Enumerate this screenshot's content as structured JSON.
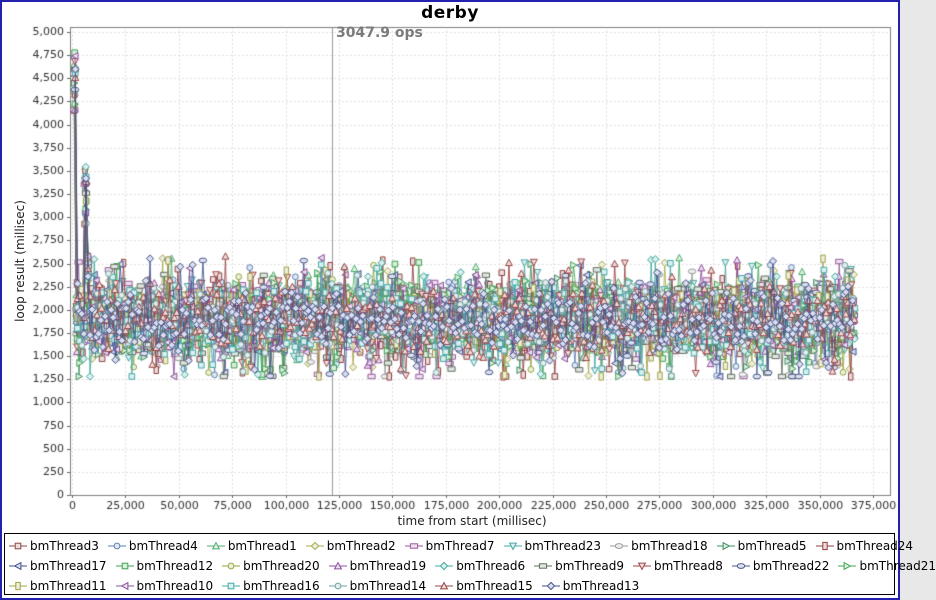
{
  "window": {
    "border_color": "#2121ad",
    "background": "#ffffff"
  },
  "chart_data": {
    "type": "scatter-line",
    "title": "derby",
    "xlabel": "time from start (millisec)",
    "ylabel": "loop result (millisec)",
    "xlim": [
      0,
      375000
    ],
    "ylim": [
      0,
      5000
    ],
    "x_tick_step": 25000,
    "y_tick_step": 250,
    "grid": true,
    "legend_position": "bottom",
    "annotation": {
      "text": "3047.9 ops",
      "x_value": 121500,
      "color": "#7b7b7b"
    },
    "sampling": {
      "t_start": 1000,
      "t_end": 366500,
      "t_step": 1020
    },
    "pattern": {
      "startup_spike": {
        "index": 0,
        "min": 4150,
        "max": 4800
      },
      "secondary_spike": {
        "index": 5,
        "min": 2850,
        "max": 3550
      },
      "post_spike": {
        "index": 6,
        "min": 2300,
        "max": 2600
      },
      "steady_band": {
        "mean": 1900,
        "stddev": 165,
        "min": 1280,
        "max": 2660
      }
    },
    "series": [
      {
        "name": "bmThread3",
        "color": "#8e4545",
        "shape": "square"
      },
      {
        "name": "bmThread4",
        "color": "#5a7fb5",
        "shape": "circle"
      },
      {
        "name": "bmThread1",
        "color": "#4fae6e",
        "shape": "triangle-up"
      },
      {
        "name": "bmThread2",
        "color": "#a8a84f",
        "shape": "diamond"
      },
      {
        "name": "bmThread7",
        "color": "#9a5a9a",
        "shape": "rect-h"
      },
      {
        "name": "bmThread23",
        "color": "#4aa8a8",
        "shape": "triangle-down"
      },
      {
        "name": "bmThread18",
        "color": "#9a9a9a",
        "shape": "ellipse-h"
      },
      {
        "name": "bmThread5",
        "color": "#3f8f5f",
        "shape": "triangle-right"
      },
      {
        "name": "bmThread24",
        "color": "#8f3f3f",
        "shape": "rect-v"
      },
      {
        "name": "bmThread17",
        "color": "#3f4f8f",
        "shape": "triangle-left"
      },
      {
        "name": "bmThread12",
        "color": "#3fa04f",
        "shape": "square"
      },
      {
        "name": "bmThread20",
        "color": "#92a53f",
        "shape": "circle"
      },
      {
        "name": "bmThread19",
        "color": "#8f4f9f",
        "shape": "triangle-up"
      },
      {
        "name": "bmThread6",
        "color": "#3fa8a0",
        "shape": "diamond"
      },
      {
        "name": "bmThread9",
        "color": "#5f6f5f",
        "shape": "rect-h"
      },
      {
        "name": "bmThread8",
        "color": "#9f4848",
        "shape": "triangle-down"
      },
      {
        "name": "bmThread22",
        "color": "#46588f",
        "shape": "ellipse-h"
      },
      {
        "name": "bmThread21",
        "color": "#44a458",
        "shape": "triangle-right"
      },
      {
        "name": "bmThread11",
        "color": "#a0a044",
        "shape": "rect-v"
      },
      {
        "name": "bmThread10",
        "color": "#8a4f9a",
        "shape": "triangle-left"
      },
      {
        "name": "bmThread16",
        "color": "#44a8a8",
        "shape": "square"
      },
      {
        "name": "bmThread14",
        "color": "#6fa0a0",
        "shape": "circle"
      },
      {
        "name": "bmThread15",
        "color": "#9a4444",
        "shape": "triangle-up"
      },
      {
        "name": "bmThread13",
        "color": "#3f4f8f",
        "shape": "diamond"
      }
    ],
    "legend_rows": [
      [
        "bmThread3",
        "bmThread4",
        "bmThread1",
        "bmThread2",
        "bmThread7",
        "bmThread23",
        "bmThread18",
        "bmThread5",
        "bmThread24"
      ],
      [
        "bmThread17",
        "bmThread12",
        "bmThread20",
        "bmThread19",
        "bmThread6",
        "bmThread9",
        "bmThread8",
        "bmThread22",
        "bmThread21"
      ],
      [
        "bmThread11",
        "bmThread10",
        "bmThread16",
        "bmThread14",
        "bmThread15",
        "bmThread13"
      ]
    ]
  }
}
